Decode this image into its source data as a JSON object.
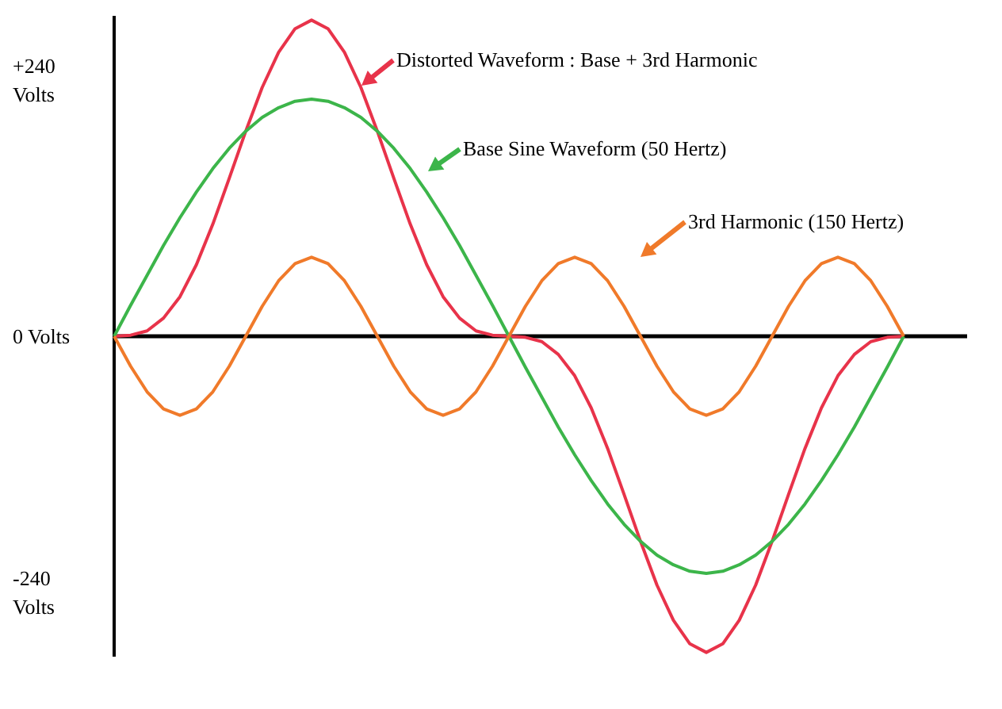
{
  "chart_data": {
    "type": "line",
    "categories": [
      null,
      null,
      null,
      null,
      null,
      null,
      null,
      null,
      null,
      null,
      null,
      null,
      null,
      null,
      null,
      null,
      null,
      null,
      null,
      null,
      null,
      null,
      null,
      null,
      null,
      null,
      null,
      null,
      null,
      null,
      null,
      null,
      null,
      null,
      null,
      null,
      null,
      null,
      null,
      null,
      null,
      null,
      null,
      null,
      null,
      null,
      null,
      null,
      null
    ],
    "series": [
      {
        "name": "Distorted Waveform : Base + 3rd Harmonic",
        "color": "#e8334a",
        "values": [
          0,
          1,
          5,
          17,
          37,
          67,
          105,
          148,
          192,
          233,
          266,
          288,
          296,
          288,
          266,
          233,
          192,
          148,
          105,
          67,
          37,
          17,
          5,
          1,
          0,
          -1,
          -5,
          -17,
          -37,
          -67,
          -105,
          -148,
          -192,
          -233,
          -266,
          -288,
          -296,
          -288,
          -266,
          -233,
          -192,
          -148,
          -105,
          -67,
          -37,
          -17,
          -5,
          -1,
          0
        ]
      },
      {
        "name": "Base Sine Waveform (50 Hertz)",
        "color": "#3cb54a",
        "values": [
          0,
          29,
          57,
          85,
          111,
          135,
          157,
          176,
          192,
          205,
          214,
          220,
          222,
          220,
          214,
          205,
          192,
          176,
          157,
          135,
          111,
          85,
          57,
          29,
          0,
          -29,
          -57,
          -85,
          -111,
          -135,
          -157,
          -176,
          -192,
          -205,
          -214,
          -220,
          -222,
          -220,
          -214,
          -205,
          -192,
          -176,
          -157,
          -135,
          -111,
          -85,
          -57,
          -29,
          0
        ]
      },
      {
        "name": "3rd Harmonic (150 Hertz)",
        "color": "#f07a2a",
        "values": [
          0,
          -28,
          -52,
          -68,
          -74,
          -68,
          -52,
          -28,
          0,
          28,
          52,
          68,
          74,
          68,
          52,
          28,
          0,
          -28,
          -52,
          -68,
          -74,
          -68,
          -52,
          -28,
          0,
          28,
          52,
          68,
          74,
          68,
          52,
          28,
          0,
          -28,
          -52,
          -68,
          -74,
          -68,
          -52,
          -28,
          0,
          28,
          52,
          68,
          74,
          68,
          52,
          28,
          0
        ]
      }
    ],
    "ylim": [
      -300,
      300
    ],
    "yticks": [
      {
        "value": 240,
        "label": "+240 Volts"
      },
      {
        "value": 0,
        "label": "0 Volts"
      },
      {
        "value": -240,
        "label": "-240 Volts"
      }
    ],
    "tick_labels": "y",
    "legend": "top right",
    "marker": "none",
    "line_style": "solid"
  }
}
